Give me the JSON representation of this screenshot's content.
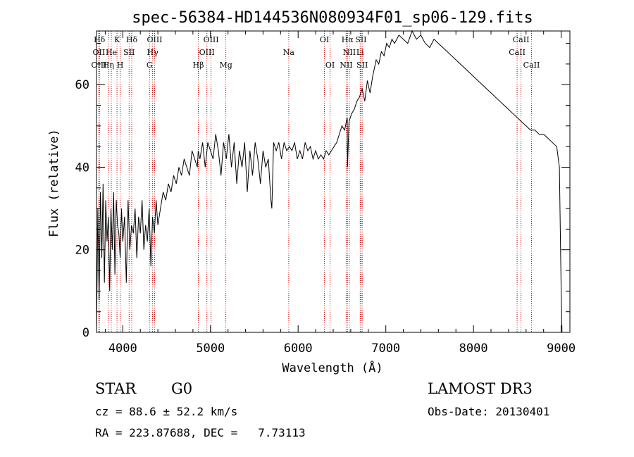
{
  "chart_data": {
    "type": "line",
    "title": "spec-56384-HD144536N080934F01_sp06-129.fits",
    "xlabel": "Wavelength (Å)",
    "ylabel": "Flux (relative)",
    "xlim": [
      3700,
      9100
    ],
    "ylim": [
      0,
      73
    ],
    "xticks": [
      4000,
      5000,
      6000,
      7000,
      8000,
      9000
    ],
    "yticks": [
      0,
      20,
      40,
      60
    ],
    "series": [
      {
        "name": "flux",
        "x": [
          3700,
          3715,
          3730,
          3745,
          3760,
          3775,
          3790,
          3805,
          3820,
          3835,
          3850,
          3865,
          3880,
          3895,
          3910,
          3925,
          3940,
          3955,
          3970,
          3985,
          4000,
          4020,
          4040,
          4060,
          4080,
          4100,
          4120,
          4140,
          4160,
          4180,
          4200,
          4220,
          4240,
          4260,
          4280,
          4300,
          4320,
          4340,
          4360,
          4380,
          4400,
          4430,
          4460,
          4490,
          4520,
          4550,
          4580,
          4610,
          4640,
          4670,
          4700,
          4730,
          4760,
          4790,
          4820,
          4850,
          4860,
          4880,
          4910,
          4940,
          4970,
          5000,
          5030,
          5060,
          5090,
          5120,
          5150,
          5180,
          5210,
          5240,
          5270,
          5300,
          5330,
          5360,
          5390,
          5420,
          5450,
          5480,
          5510,
          5540,
          5570,
          5600,
          5630,
          5660,
          5690,
          5700,
          5720,
          5750,
          5780,
          5810,
          5840,
          5870,
          5900,
          5930,
          5960,
          5990,
          6020,
          6050,
          6080,
          6110,
          6140,
          6170,
          6200,
          6230,
          6260,
          6290,
          6320,
          6350,
          6380,
          6410,
          6440,
          6470,
          6500,
          6530,
          6560,
          6563,
          6580,
          6610,
          6640,
          6670,
          6700,
          6730,
          6760,
          6790,
          6820,
          6850,
          6870,
          6890,
          6920,
          6950,
          6980,
          7010,
          7040,
          7070,
          7100,
          7150,
          7200,
          7250,
          7300,
          7350,
          7400,
          7450,
          7500,
          7550,
          7600,
          7650,
          7700,
          7750,
          7800,
          7850,
          7900,
          7950,
          8000,
          8050,
          8100,
          8150,
          8200,
          8250,
          8300,
          8350,
          8400,
          8450,
          8500,
          8550,
          8600,
          8650,
          8700,
          8750,
          8800,
          8850,
          8900,
          8950,
          8980,
          9000,
          9010
        ],
        "y": [
          0,
          30,
          8,
          34,
          18,
          36,
          12,
          32,
          22,
          28,
          10,
          30,
          20,
          34,
          14,
          32,
          26,
          24,
          18,
          30,
          22,
          28,
          12,
          32,
          20,
          26,
          24,
          30,
          18,
          28,
          24,
          32,
          20,
          26,
          22,
          30,
          16,
          28,
          24,
          32,
          26,
          30,
          34,
          32,
          36,
          34,
          38,
          36,
          40,
          38,
          42,
          40,
          38,
          44,
          42,
          40,
          44,
          42,
          46,
          40,
          46,
          44,
          42,
          48,
          44,
          38,
          46,
          42,
          48,
          40,
          46,
          36,
          44,
          40,
          46,
          34,
          44,
          38,
          46,
          42,
          36,
          44,
          40,
          42,
          32,
          30,
          46,
          44,
          46,
          42,
          46,
          44,
          45,
          44,
          46,
          42,
          44,
          42,
          46,
          44,
          45,
          42,
          44,
          42,
          43,
          42,
          44,
          43,
          44,
          45,
          46,
          48,
          50,
          49,
          52,
          40,
          51,
          53,
          54,
          56,
          57,
          59,
          56,
          61,
          58,
          62,
          64,
          66,
          65,
          68,
          67,
          70,
          69,
          71,
          70,
          72,
          71,
          70,
          73,
          71,
          72,
          70,
          69,
          71,
          70,
          69,
          68,
          67,
          66,
          65,
          64,
          63,
          62,
          61,
          60,
          59,
          58,
          57,
          56,
          55,
          54,
          53,
          52,
          51,
          50,
          49,
          49,
          48,
          48,
          47,
          46,
          45,
          40,
          10,
          0
        ]
      }
    ],
    "lines": [
      {
        "name": "Hδ",
        "x": 3734,
        "row": 1
      },
      {
        "name": "K",
        "x": 3934,
        "row": 1
      },
      {
        "name": "Hδ",
        "x": 4102,
        "row": 1
      },
      {
        "name": "OIII",
        "x": 4363,
        "row": 1
      },
      {
        "name": "OIII",
        "x": 5007,
        "row": 1
      },
      {
        "name": "OI",
        "x": 6300,
        "row": 1
      },
      {
        "name": "Hα",
        "x": 6563,
        "row": 1
      },
      {
        "name": "SII",
        "x": 6717,
        "row": 1
      },
      {
        "name": "CaII",
        "x": 8542,
        "row": 1
      },
      {
        "name": "OII",
        "x": 3727,
        "row": 2
      },
      {
        "name": "He",
        "x": 3869,
        "row": 2
      },
      {
        "name": "SII",
        "x": 4072,
        "row": 2
      },
      {
        "name": "Hγ",
        "x": 4340,
        "row": 2
      },
      {
        "name": "OIII",
        "x": 4959,
        "row": 2
      },
      {
        "name": "Na",
        "x": 5893,
        "row": 2
      },
      {
        "name": "NII",
        "x": 6584,
        "row": 2
      },
      {
        "name": "Li",
        "x": 6708,
        "row": 2
      },
      {
        "name": "CaII",
        "x": 8498,
        "row": 2
      },
      {
        "name": "OIII",
        "x": 3727,
        "row": 3
      },
      {
        "name": "Hη",
        "x": 3835,
        "row": 3
      },
      {
        "name": "H",
        "x": 3969,
        "row": 3
      },
      {
        "name": "G",
        "x": 4305,
        "row": 3
      },
      {
        "name": "Hβ",
        "x": 4861,
        "row": 3
      },
      {
        "name": "Mg",
        "x": 5175,
        "row": 3
      },
      {
        "name": "OI",
        "x": 6364,
        "row": 3
      },
      {
        "name": "NII",
        "x": 6548,
        "row": 3
      },
      {
        "name": "SII",
        "x": 6731,
        "row": 3
      },
      {
        "name": "CaII",
        "x": 8662,
        "row": 3
      }
    ]
  },
  "info": {
    "class": "STAR",
    "subclass": "G0",
    "survey": "LAMOST DR3",
    "cz": "cz = 88.6 ± 52.2 km/s",
    "obs_date": "Obs-Date: 20130401",
    "radec": "RA = 223.87688, DEC =   7.73113"
  }
}
